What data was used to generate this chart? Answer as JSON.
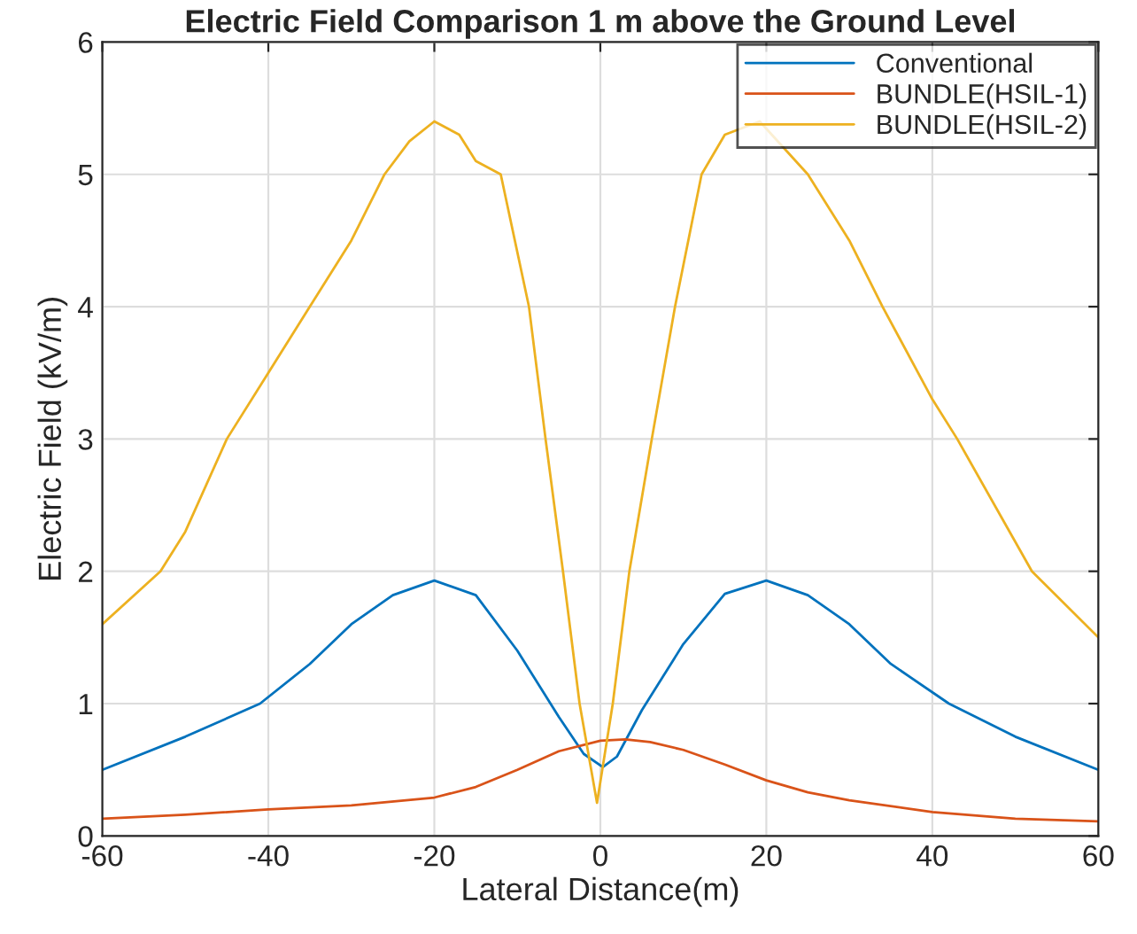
{
  "chart_data": {
    "type": "line",
    "title": "Electric Field Comparison 1 m above the Ground Level",
    "xlabel": "Lateral Distance(m)",
    "ylabel": "Electric Field (kV/m)",
    "xlim": [
      -60,
      60
    ],
    "xticks": [
      -60,
      -40,
      -20,
      0,
      20,
      40,
      60
    ],
    "ylim": [
      0,
      6
    ],
    "yticks": [
      0,
      1,
      2,
      3,
      4,
      5,
      6
    ],
    "grid": true,
    "legend": "top right",
    "series": [
      {
        "name": "Conventional",
        "color": "#0072bd",
        "x": [
          -60,
          -50,
          -41,
          -35,
          -30,
          -25,
          -20,
          -15,
          -10,
          -5,
          -2,
          0.3,
          2,
          5,
          10,
          15,
          20,
          25,
          30,
          35,
          42,
          50,
          60
        ],
        "values": [
          0.5,
          0.75,
          1.0,
          1.3,
          1.6,
          1.82,
          1.93,
          1.82,
          1.4,
          0.9,
          0.62,
          0.52,
          0.6,
          0.95,
          1.45,
          1.83,
          1.93,
          1.82,
          1.6,
          1.3,
          1.0,
          0.75,
          0.5
        ]
      },
      {
        "name": "BUNDLE(HSIL-1)",
        "color": "#d95319",
        "x": [
          -60,
          -50,
          -40,
          -30,
          -20,
          -15,
          -10,
          -5,
          0,
          3,
          6,
          10,
          15,
          20,
          25,
          30,
          40,
          50,
          60
        ],
        "values": [
          0.13,
          0.16,
          0.2,
          0.23,
          0.29,
          0.37,
          0.5,
          0.64,
          0.72,
          0.73,
          0.71,
          0.65,
          0.54,
          0.42,
          0.33,
          0.27,
          0.18,
          0.13,
          0.11
        ]
      },
      {
        "name": "BUNDLE(HSIL-2)",
        "color": "#edb120",
        "x": [
          -60,
          -53,
          -50,
          -45,
          -40,
          -35,
          -30,
          -26,
          -23,
          -20,
          -17,
          -15,
          -12,
          -8.6,
          -6.6,
          -4.5,
          -2.5,
          -0.4,
          1.5,
          3.5,
          6.2,
          9,
          12.2,
          15,
          19.2,
          25,
          30,
          34,
          40,
          43,
          52,
          60
        ],
        "values": [
          1.6,
          2.0,
          2.3,
          3.0,
          3.5,
          4.0,
          4.5,
          5.0,
          5.25,
          5.4,
          5.3,
          5.1,
          5.0,
          4.0,
          3.0,
          2.0,
          1.0,
          0.25,
          1.0,
          2.0,
          3.0,
          4.0,
          5.0,
          5.3,
          5.4,
          5.0,
          4.5,
          4.0,
          3.3,
          3.0,
          2.0,
          1.5
        ]
      }
    ]
  }
}
